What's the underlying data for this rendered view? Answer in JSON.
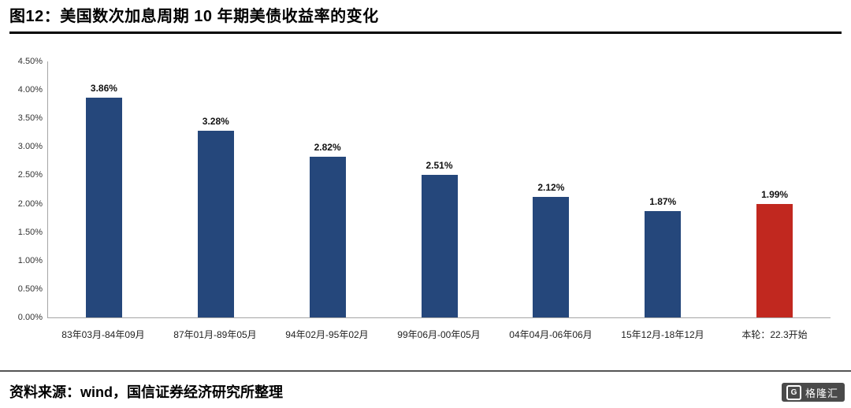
{
  "header": {
    "title": "图12：美国数次加息周期 10 年期美债收益率的变化"
  },
  "chart_data": {
    "type": "bar",
    "title": "图12：美国数次加息周期 10 年期美债收益率的变化",
    "categories": [
      "83年03月-84年09月",
      "87年01月-89年05月",
      "94年02月-95年02月",
      "99年06月-00年05月",
      "04年04月-06年06月",
      "15年12月-18年12月",
      "本轮：22.3开始"
    ],
    "values": [
      3.86,
      3.28,
      2.82,
      2.51,
      2.12,
      1.87,
      1.99
    ],
    "value_labels": [
      "3.86%",
      "3.28%",
      "2.82%",
      "2.51%",
      "2.12%",
      "1.87%",
      "1.99%"
    ],
    "xlabel": "",
    "ylabel": "",
    "ylim": [
      0,
      4.5
    ],
    "yticks": [
      "4.50%",
      "4.00%",
      "3.50%",
      "3.00%",
      "2.50%",
      "2.00%",
      "1.50%",
      "1.00%",
      "0.50%",
      "0.00%"
    ],
    "grid": false,
    "legend": "none",
    "bar_color": "#25477B",
    "highlight_index": 6,
    "highlight_color": "#C1281F"
  },
  "footer": {
    "source": "资料来源：wind，国信证券经济研究所整理",
    "logo_icon": "G",
    "logo_text": "格隆汇"
  }
}
